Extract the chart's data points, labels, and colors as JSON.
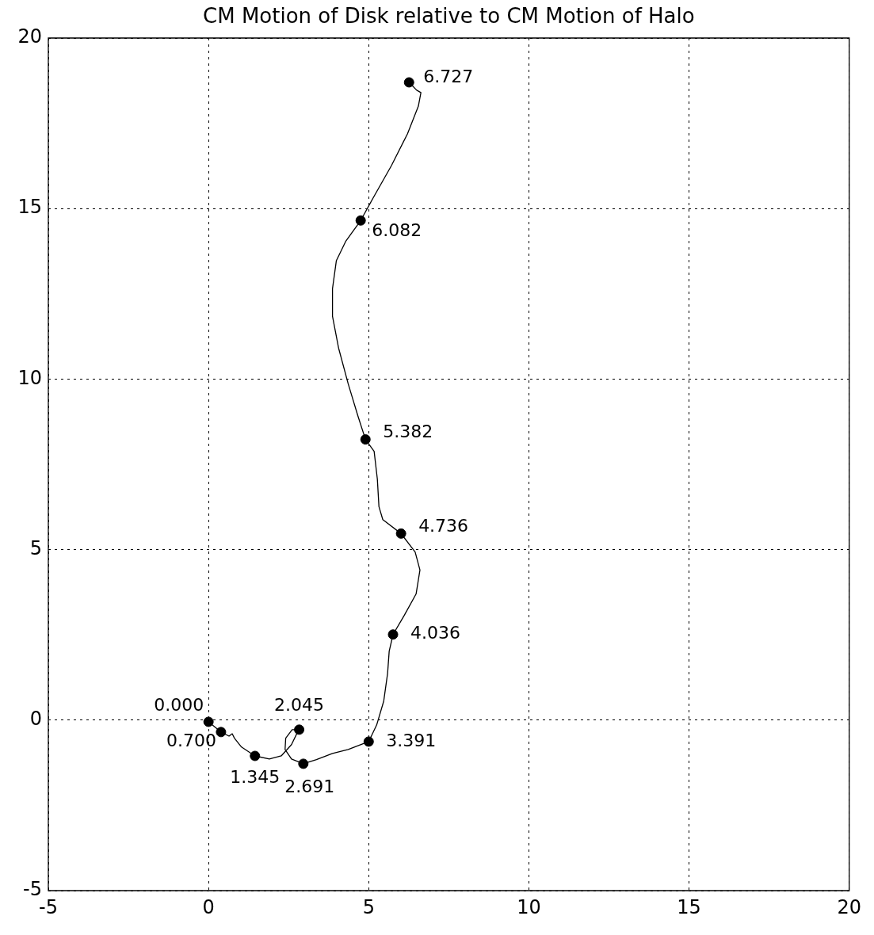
{
  "chart_data": {
    "type": "scatter",
    "title": "CM Motion of Disk relative to CM Motion of Halo",
    "xlim": [
      -5,
      20
    ],
    "ylim": [
      -5,
      20
    ],
    "xticks": [
      -5,
      0,
      5,
      10,
      15,
      20
    ],
    "yticks": [
      -5,
      0,
      5,
      10,
      15,
      20
    ],
    "grid": true,
    "line_style": "solid",
    "series": [
      {
        "type": "line",
        "marker": "none",
        "color": "#000000",
        "x": [
          0,
          0.39,
          0.64,
          0.74,
          0.81,
          1.03,
          1.45,
          1.9,
          2.27,
          2.59,
          2.78,
          2.83,
          2.61,
          2.41,
          2.39,
          2.59,
          2.96,
          3.37,
          3.87,
          4.36,
          5.0,
          5.25,
          5.47,
          5.59,
          5.64,
          5.76,
          6.11,
          6.48,
          6.6,
          6.45,
          6.01,
          5.44,
          5.32,
          5.27,
          5.17,
          4.9,
          4.66,
          4.36,
          4.06,
          3.87,
          3.87,
          3.99,
          4.29,
          4.75,
          5.15,
          5.71,
          6.21,
          6.55,
          6.63,
          6.5,
          6.26
        ],
        "values": [
          -0.05,
          -0.35,
          -0.47,
          -0.4,
          -0.53,
          -0.79,
          -1.05,
          -1.14,
          -1.05,
          -0.72,
          -0.35,
          -0.28,
          -0.28,
          -0.53,
          -0.86,
          -1.14,
          -1.28,
          -1.16,
          -0.98,
          -0.86,
          -0.63,
          -0.14,
          0.56,
          1.37,
          2.02,
          2.51,
          3.07,
          3.7,
          4.4,
          4.93,
          5.47,
          5.88,
          6.26,
          7.07,
          7.88,
          8.23,
          8.93,
          9.86,
          10.91,
          11.84,
          12.65,
          13.47,
          14.05,
          14.65,
          15.33,
          16.26,
          17.19,
          18.0,
          18.4,
          18.47,
          18.7
        ]
      },
      {
        "type": "scatter",
        "marker": "circle",
        "color": "#000000",
        "x": [
          0,
          0.39,
          1.45,
          2.83,
          2.96,
          5.0,
          5.76,
          6.01,
          4.9,
          4.75,
          6.26
        ],
        "values": [
          -0.05,
          -0.35,
          -1.05,
          -0.28,
          -1.28,
          -0.63,
          2.51,
          5.47,
          8.23,
          14.65,
          18.7
        ]
      }
    ],
    "annotations": [
      {
        "text": "0.000",
        "x": 0,
        "y": -0.05
      },
      {
        "text": "0.700",
        "x": 0.39,
        "y": -0.35
      },
      {
        "text": "1.345",
        "x": 1.45,
        "y": -1.05
      },
      {
        "text": "2.045",
        "x": 2.83,
        "y": -0.28
      },
      {
        "text": "2.691",
        "x": 2.96,
        "y": -1.28
      },
      {
        "text": "3.391",
        "x": 5.0,
        "y": -0.63
      },
      {
        "text": "4.036",
        "x": 5.76,
        "y": 2.51
      },
      {
        "text": "4.736",
        "x": 6.01,
        "y": 5.47
      },
      {
        "text": "5.382",
        "x": 4.9,
        "y": 8.23
      },
      {
        "text": "6.082",
        "x": 4.75,
        "y": 14.65
      },
      {
        "text": "6.727",
        "x": 6.26,
        "y": 18.7
      }
    ]
  }
}
